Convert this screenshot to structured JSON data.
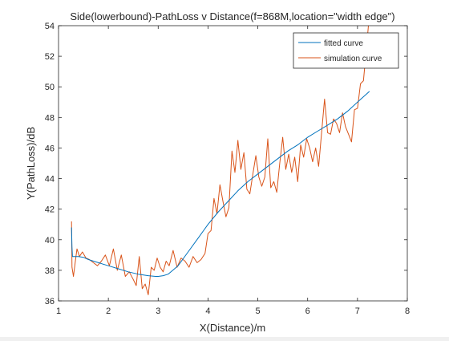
{
  "chart_data": {
    "type": "line",
    "title": "Side(lowerbound)-PathLoss v Distance(f=868M,location=\"width edge\")",
    "xlabel": "X(Distance)/m",
    "ylabel": "Y(PathLoss)/dB",
    "xlim": [
      1,
      8
    ],
    "ylim": [
      36,
      54
    ],
    "xticks": [
      "1",
      "2",
      "3",
      "4",
      "5",
      "6",
      "7",
      "8"
    ],
    "yticks": [
      "36",
      "38",
      "40",
      "42",
      "44",
      "46",
      "48",
      "50",
      "52",
      "54"
    ],
    "grid": false,
    "legend_position": "top-right",
    "series": [
      {
        "name": "fitted curve",
        "color": "#0072BD",
        "x": [
          1.26,
          1.27,
          1.28,
          1.3,
          1.4,
          1.5,
          1.6,
          1.8,
          2.0,
          2.2,
          2.4,
          2.6,
          2.8,
          2.95,
          3.0,
          3.1,
          3.2,
          3.4,
          3.6,
          3.8,
          4.0,
          4.2,
          4.4,
          4.6,
          4.8,
          5.0,
          5.2,
          5.4,
          5.6,
          5.8,
          6.0,
          6.2,
          6.4,
          6.6,
          6.8,
          7.0,
          7.24
        ],
        "y": [
          40.8,
          39.5,
          38.9,
          38.9,
          38.9,
          38.85,
          38.7,
          38.5,
          38.3,
          38.1,
          37.9,
          37.75,
          37.65,
          37.6,
          37.6,
          37.65,
          37.75,
          38.3,
          39.2,
          40.1,
          41.0,
          41.8,
          42.5,
          43.2,
          43.8,
          44.3,
          44.8,
          45.3,
          45.8,
          46.2,
          46.7,
          47.1,
          47.5,
          47.9,
          48.4,
          49.0,
          49.7
        ]
      },
      {
        "name": "simulation curve",
        "color": "#D95319",
        "x": [
          1.26,
          1.27,
          1.3,
          1.33,
          1.37,
          1.42,
          1.48,
          1.55,
          1.62,
          1.7,
          1.78,
          1.86,
          1.94,
          2.02,
          2.1,
          2.18,
          2.26,
          2.34,
          2.42,
          2.5,
          2.56,
          2.62,
          2.68,
          2.74,
          2.8,
          2.86,
          2.92,
          2.98,
          3.04,
          3.1,
          3.16,
          3.22,
          3.3,
          3.38,
          3.46,
          3.54,
          3.62,
          3.7,
          3.78,
          3.86,
          3.94,
          4.0,
          4.06,
          4.12,
          4.18,
          4.24,
          4.3,
          4.36,
          4.42,
          4.48,
          4.54,
          4.6,
          4.66,
          4.72,
          4.78,
          4.84,
          4.9,
          4.96,
          5.02,
          5.08,
          5.14,
          5.2,
          5.26,
          5.32,
          5.38,
          5.44,
          5.5,
          5.56,
          5.62,
          5.68,
          5.74,
          5.8,
          5.86,
          5.92,
          5.98,
          6.04,
          6.1,
          6.16,
          6.22,
          6.28,
          6.34,
          6.4,
          6.46,
          6.52,
          6.58,
          6.64,
          6.7,
          6.76,
          6.82,
          6.88,
          6.94,
          7.0,
          7.06,
          7.12,
          7.18,
          7.22
        ],
        "y": [
          41.2,
          38.2,
          37.6,
          38.4,
          39.4,
          38.9,
          39.2,
          38.8,
          38.7,
          38.5,
          38.3,
          38.6,
          39.0,
          38.3,
          39.4,
          38.0,
          39.0,
          37.6,
          37.9,
          37.4,
          37.0,
          38.9,
          36.8,
          37.1,
          36.4,
          38.2,
          38.0,
          38.8,
          38.2,
          37.9,
          38.6,
          38.3,
          39.3,
          38.2,
          38.8,
          38.6,
          38.2,
          38.9,
          38.5,
          38.7,
          39.1,
          40.4,
          40.6,
          42.7,
          41.7,
          43.6,
          42.5,
          41.5,
          42.1,
          45.8,
          44.4,
          46.5,
          44.6,
          45.7,
          43.3,
          43.0,
          44.3,
          45.5,
          44.1,
          43.5,
          44.1,
          46.6,
          43.4,
          43.8,
          43.1,
          45.0,
          46.7,
          44.6,
          45.6,
          44.4,
          45.4,
          43.8,
          46.2,
          45.4,
          46.6,
          46.0,
          45.1,
          46.0,
          44.8,
          47.0,
          49.2,
          47.0,
          46.9,
          47.9,
          47.6,
          47.0,
          48.3,
          47.4,
          46.9,
          46.4,
          48.5,
          48.6,
          50.2,
          50.4,
          52.5,
          54.0
        ]
      }
    ]
  }
}
